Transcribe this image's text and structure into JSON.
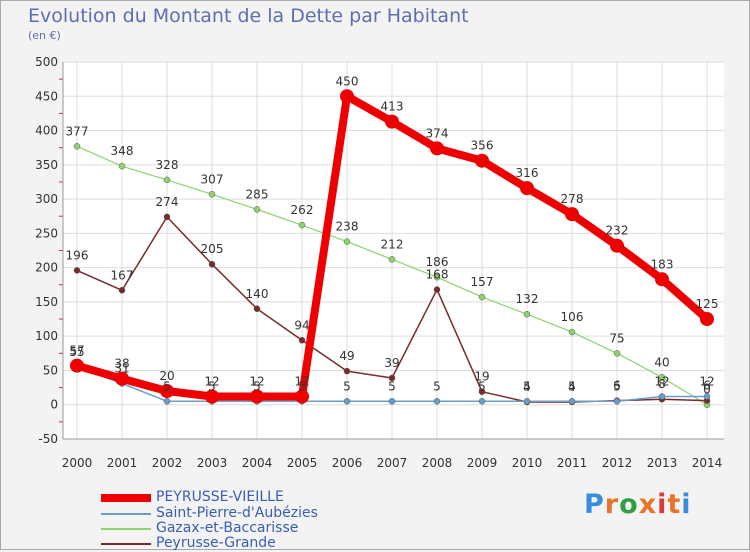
{
  "title": "Evolution du Montant de la Dette par Habitant",
  "unit": "(en €)",
  "logo": {
    "text": "Proxiti",
    "colors": [
      "#3a8dde",
      "#e8742a",
      "#2ea043",
      "#e8742a",
      "#d43c3c",
      "#e8742a",
      "#3a8dde"
    ]
  },
  "chart_data": {
    "type": "line",
    "title": "Evolution du Montant de la Dette par Habitant",
    "ylabel": "(en €)",
    "xlabel": "",
    "ylim": [
      -50,
      500
    ],
    "y_ticks": [
      "-50",
      "0",
      "50",
      "100",
      "150",
      "200",
      "250",
      "300",
      "350",
      "400",
      "450",
      "500"
    ],
    "categories": [
      "2000",
      "2001",
      "2002",
      "2003",
      "2004",
      "2005",
      "2006",
      "2007",
      "2008",
      "2009",
      "2010",
      "2011",
      "2012",
      "2013",
      "2014"
    ],
    "grid": true,
    "legend_position": "bottom-left",
    "series": [
      {
        "name": "PEYRUSSE-VIEILLE",
        "color": "#ee0000",
        "values": [
          57,
          38,
          20,
          12,
          12,
          12,
          450,
          413,
          374,
          356,
          316,
          278,
          232,
          183,
          125
        ]
      },
      {
        "name": "Saint-Pierre-d'Aubézies",
        "color": "#6a9ec8",
        "values": [
          55,
          31,
          5,
          5,
          5,
          5,
          5,
          5,
          5,
          5,
          5,
          5,
          5,
          12,
          12
        ]
      },
      {
        "name": "Gazax-et-Baccarisse",
        "color": "#8ed36e",
        "values": [
          377,
          348,
          328,
          307,
          285,
          262,
          238,
          212,
          186,
          157,
          132,
          106,
          75,
          40,
          0
        ]
      },
      {
        "name": "Peyrusse-Grande",
        "color": "#7a2a2a",
        "values": [
          196,
          167,
          274,
          205,
          140,
          94,
          49,
          39,
          168,
          19,
          4,
          4,
          6,
          8,
          6
        ]
      }
    ]
  }
}
